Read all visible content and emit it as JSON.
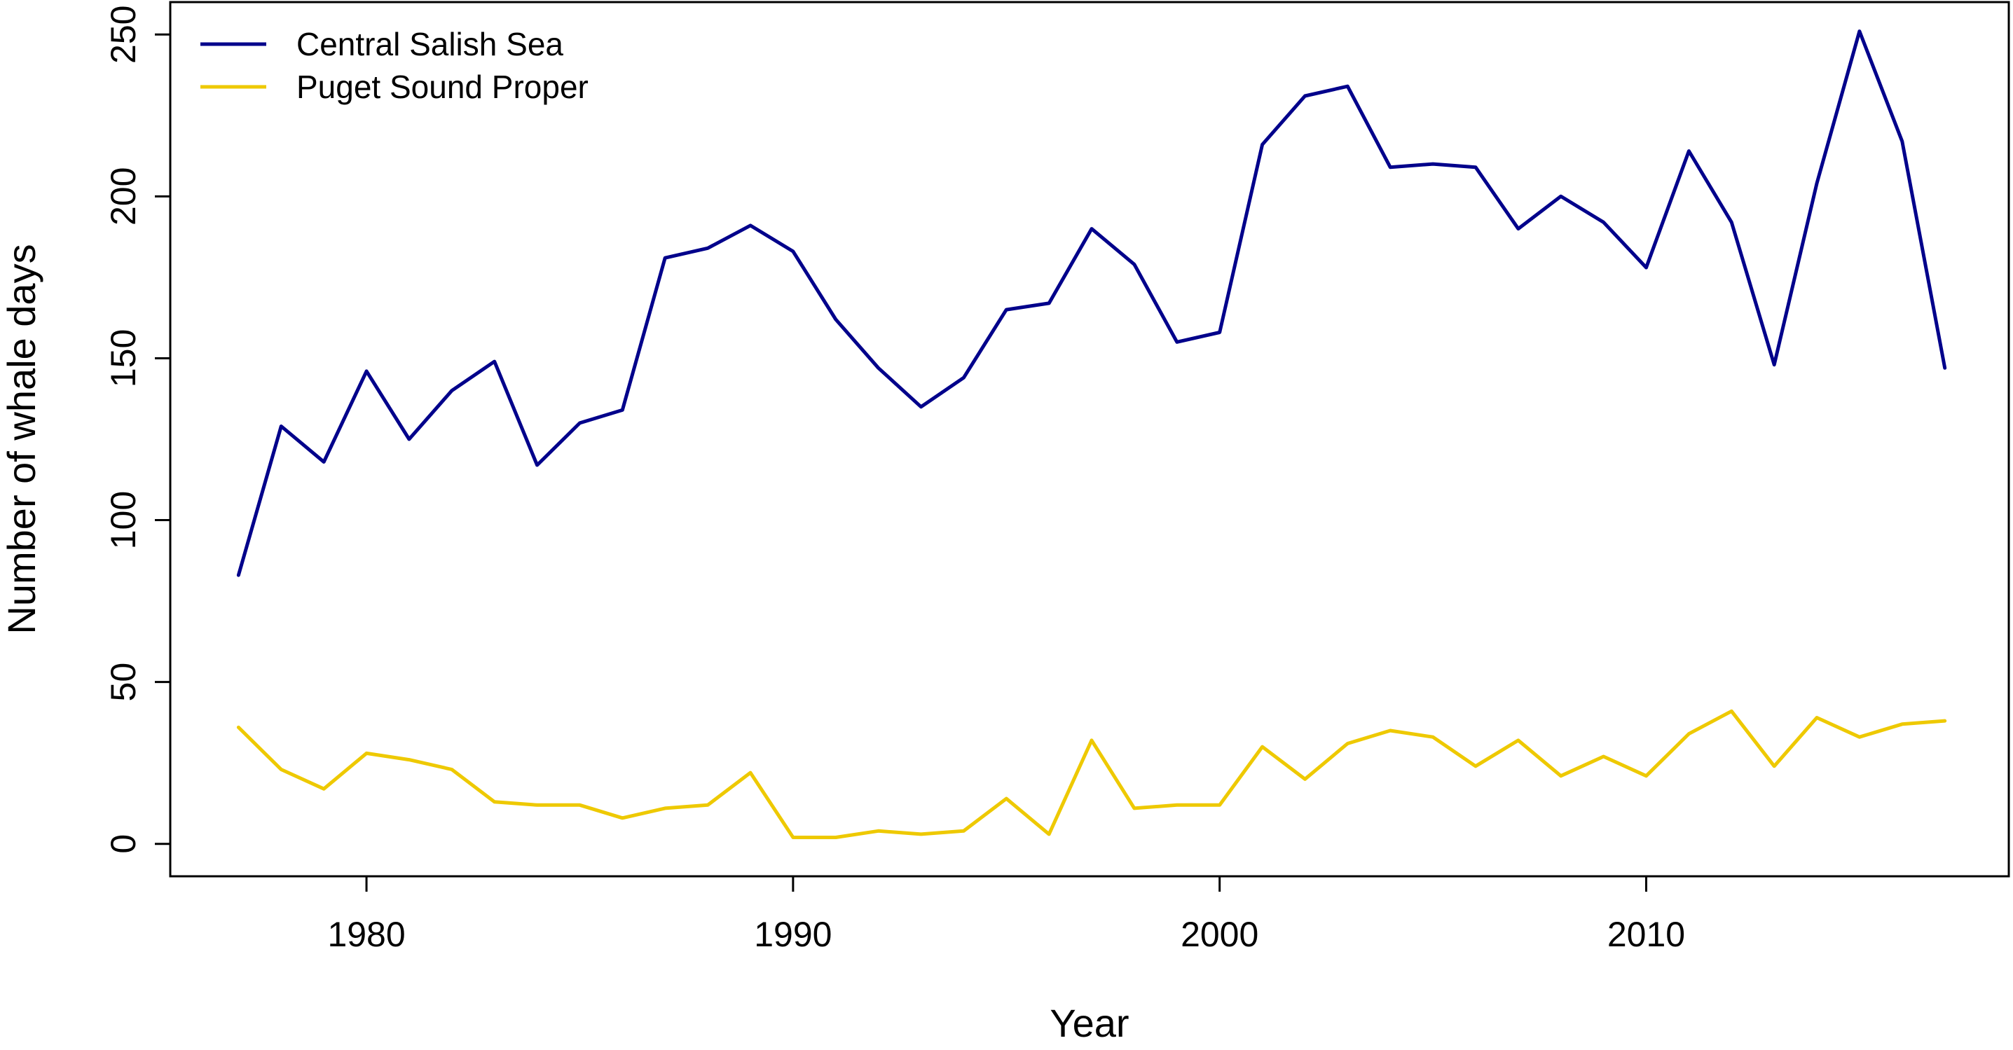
{
  "chart_data": {
    "type": "line",
    "title": "",
    "xlabel": "Year",
    "ylabel": "Number of whale days",
    "xlim": [
      1975.4,
      2018.5
    ],
    "ylim": [
      -10,
      260
    ],
    "x_ticks": [
      1980,
      1990,
      2000,
      2010
    ],
    "y_ticks": [
      0,
      50,
      100,
      150,
      200,
      250
    ],
    "grid": false,
    "legend_position": "top-left",
    "x": [
      1977,
      1978,
      1979,
      1980,
      1981,
      1982,
      1983,
      1984,
      1985,
      1986,
      1987,
      1988,
      1989,
      1990,
      1991,
      1992,
      1993,
      1994,
      1995,
      1996,
      1997,
      1998,
      1999,
      2000,
      2001,
      2002,
      2003,
      2004,
      2005,
      2006,
      2007,
      2008,
      2009,
      2010,
      2011,
      2012,
      2013,
      2014,
      2015,
      2016,
      2017
    ],
    "series": [
      {
        "name": "Central Salish Sea",
        "color": "#00008B",
        "values": [
          83,
          129,
          118,
          146,
          125,
          140,
          149,
          117,
          130,
          134,
          181,
          184,
          191,
          183,
          162,
          147,
          135,
          144,
          165,
          167,
          190,
          179,
          155,
          158,
          216,
          231,
          234,
          209,
          210,
          209,
          190,
          200,
          192,
          178,
          214,
          192,
          148,
          204,
          251,
          217,
          147
        ]
      },
      {
        "name": "Puget Sound Proper",
        "color": "#EEC900",
        "values": [
          36,
          23,
          17,
          28,
          26,
          23,
          13,
          12,
          12,
          8,
          11,
          12,
          22,
          2,
          2,
          4,
          3,
          4,
          14,
          3,
          32,
          11,
          12,
          12,
          30,
          20,
          31,
          35,
          33,
          24,
          32,
          21,
          27,
          21,
          34,
          41,
          24,
          39,
          33,
          37,
          38
        ]
      }
    ]
  }
}
